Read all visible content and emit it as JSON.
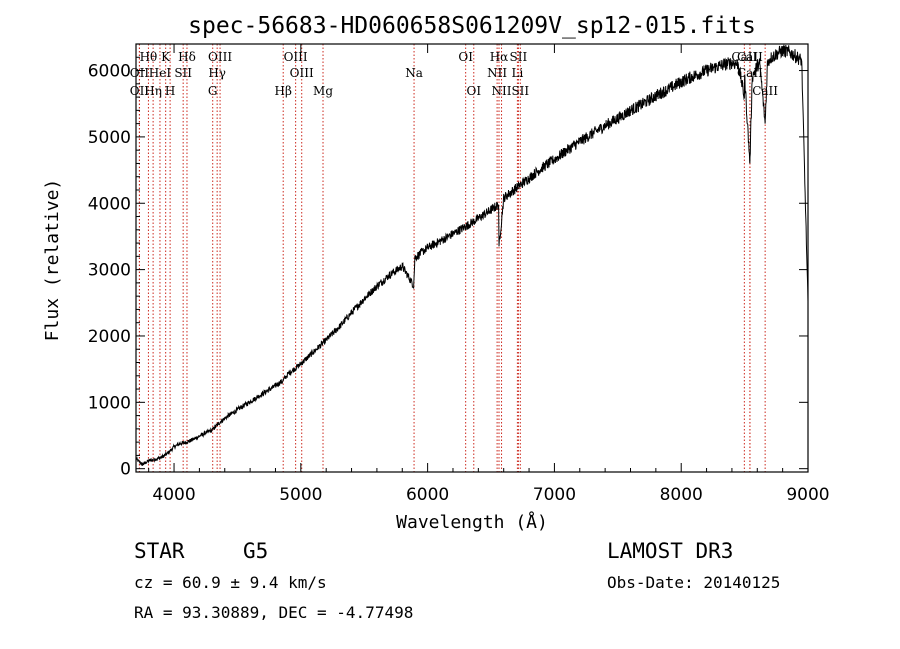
{
  "chart_data": {
    "type": "line",
    "title": "spec-56683-HD060658S061209V_sp12-015.fits",
    "xlabel": "Wavelength (Å)",
    "ylabel": "Flux (relative)",
    "xlim": [
      3700,
      9000
    ],
    "ylim": [
      -50,
      6400
    ],
    "x_ticks": [
      4000,
      5000,
      6000,
      7000,
      8000,
      9000
    ],
    "y_ticks": [
      0,
      1000,
      2000,
      3000,
      4000,
      5000,
      6000
    ],
    "series": [
      {
        "name": "flux",
        "x": [
          3700,
          3750,
          3800,
          3850,
          3900,
          3950,
          4000,
          4050,
          4100,
          4150,
          4200,
          4250,
          4300,
          4350,
          4400,
          4500,
          4600,
          4700,
          4800,
          4861,
          4900,
          5000,
          5100,
          5200,
          5300,
          5400,
          5500,
          5600,
          5700,
          5800,
          5890,
          5900,
          6000,
          6100,
          6200,
          6300,
          6400,
          6500,
          6560,
          6563,
          6600,
          6700,
          6800,
          6900,
          7000,
          7100,
          7200,
          7300,
          7400,
          7500,
          7600,
          7700,
          7800,
          7900,
          8000,
          8100,
          8200,
          8300,
          8400,
          8450,
          8498,
          8500,
          8542,
          8560,
          8600,
          8620,
          8662,
          8680,
          8700,
          8750,
          8800,
          8850,
          8900,
          8950,
          9000
        ],
        "y": [
          150,
          60,
          120,
          140,
          170,
          230,
          330,
          380,
          400,
          440,
          490,
          540,
          580,
          680,
          760,
          890,
          1010,
          1130,
          1250,
          1330,
          1430,
          1580,
          1760,
          1940,
          2130,
          2350,
          2560,
          2750,
          2920,
          3050,
          2760,
          3180,
          3330,
          3430,
          3540,
          3650,
          3770,
          3900,
          3980,
          3350,
          4080,
          4230,
          4380,
          4530,
          4660,
          4800,
          4930,
          5050,
          5170,
          5280,
          5400,
          5500,
          5620,
          5720,
          5830,
          5920,
          6000,
          6070,
          6120,
          6100,
          5600,
          5900,
          4600,
          5900,
          6080,
          6100,
          5200,
          6100,
          6180,
          6250,
          6300,
          6280,
          6220,
          6150,
          2500
        ]
      }
    ],
    "spectral_lines": [
      {
        "name": "Hθ",
        "wavelength": 3798,
        "row": 1
      },
      {
        "name": "OII",
        "wavelength": 3727,
        "row": 2
      },
      {
        "name": "OII",
        "wavelength": 3727,
        "row": 3
      },
      {
        "name": "Hη",
        "wavelength": 3835,
        "row": 3
      },
      {
        "name": "HeI",
        "wavelength": 3889,
        "row": 2
      },
      {
        "name": "K",
        "wavelength": 3934,
        "row": 1
      },
      {
        "name": "SII",
        "wavelength": 4072,
        "row": 2
      },
      {
        "name": "H",
        "wavelength": 3969,
        "row": 3
      },
      {
        "name": "Hδ",
        "wavelength": 4102,
        "row": 1
      },
      {
        "name": "OIII",
        "wavelength": 4363,
        "row": 1
      },
      {
        "name": "Hγ",
        "wavelength": 4340,
        "row": 2
      },
      {
        "name": "G",
        "wavelength": 4305,
        "row": 3
      },
      {
        "name": "OIII",
        "wavelength": 4959,
        "row": 1
      },
      {
        "name": "OIII",
        "wavelength": 5007,
        "row": 2
      },
      {
        "name": "Hβ",
        "wavelength": 4861,
        "row": 3
      },
      {
        "name": "Mg",
        "wavelength": 5175,
        "row": 3
      },
      {
        "name": "Na",
        "wavelength": 5893,
        "row": 2
      },
      {
        "name": "OI",
        "wavelength": 6300,
        "row": 1
      },
      {
        "name": "OI",
        "wavelength": 6364,
        "row": 3
      },
      {
        "name": "Hα",
        "wavelength": 6563,
        "row": 1
      },
      {
        "name": "NII",
        "wavelength": 6548,
        "row": 2
      },
      {
        "name": "NII",
        "wavelength": 6583,
        "row": 3
      },
      {
        "name": "SII",
        "wavelength": 6716,
        "row": 1
      },
      {
        "name": "Li",
        "wavelength": 6708,
        "row": 2
      },
      {
        "name": "SII",
        "wavelength": 6731,
        "row": 3
      },
      {
        "name": "CaII",
        "wavelength": 8498,
        "row": 1
      },
      {
        "name": "CaII",
        "wavelength": 8542,
        "row": 2
      },
      {
        "name": "CaII",
        "wavelength": 8662,
        "row": 3
      },
      {
        "name": "CaII",
        "wavelength": 8542,
        "row": 1
      }
    ]
  },
  "info": {
    "object_class": "STAR",
    "subclass": "G5",
    "survey": "LAMOST DR3",
    "redshift": "cz = 60.9 ± 9.4 km/s",
    "obs_date": "Obs-Date: 20140125",
    "coords": "RA =  93.30889, DEC =  -4.77498"
  },
  "colors": {
    "line_marker": "#cc2a1f",
    "spectrum": "#000000",
    "axes": "#000000"
  }
}
